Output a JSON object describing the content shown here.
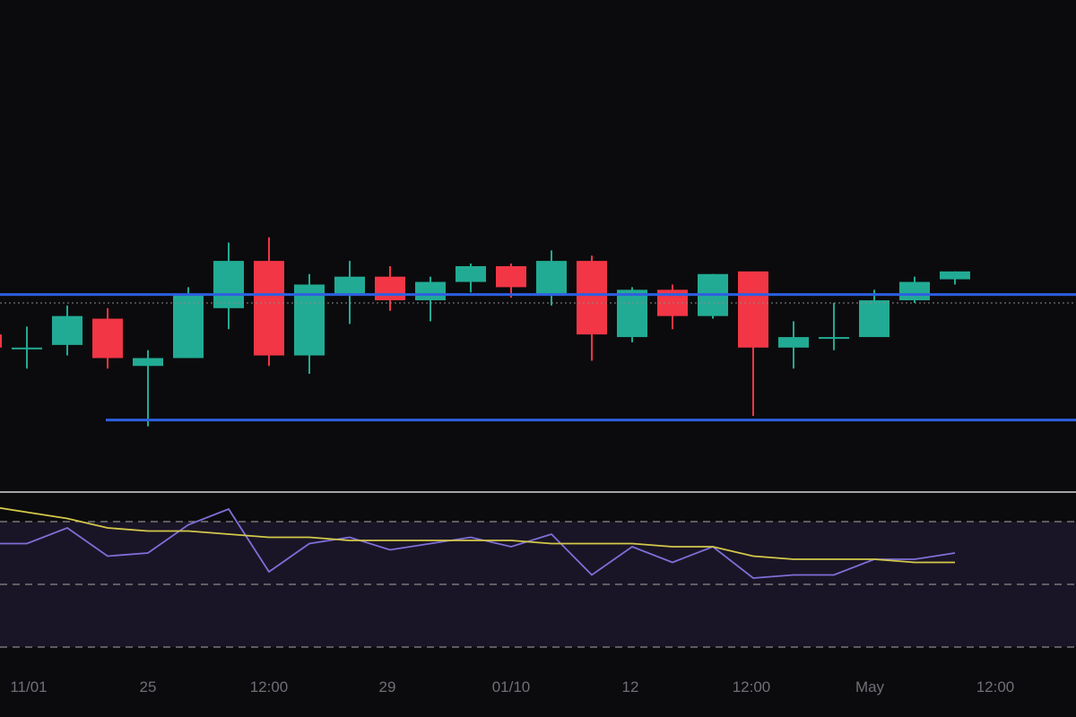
{
  "colors": {
    "background": "#0b0b0d",
    "up": "#22ab94",
    "down": "#f23645",
    "support_resistance": "#2d5fe0",
    "rsi_line": "#7e6fd8",
    "rsi_ma": "#d4c84a",
    "rsi_band": "#1a1526",
    "divider": "#d8d8d8",
    "guide": "#8a8a8a",
    "tick": "#6f6f78"
  },
  "chart_data": [
    {
      "type": "candlestick",
      "title": "",
      "xlabel": "",
      "ylabel": "",
      "ylim": [
        0,
        100
      ],
      "grid": false,
      "horizontal_lines": [
        {
          "name": "resistance",
          "value": 60.2
        },
        {
          "name": "support",
          "value": 12.4
        }
      ],
      "dotted_price_line": 57.0,
      "candles": [
        {
          "o": 45.0,
          "h": 45.0,
          "l": 38.0,
          "c": 40.0
        },
        {
          "o": 40.0,
          "h": 48.0,
          "l": 32.0,
          "c": 40.0
        },
        {
          "o": 41.0,
          "h": 56.0,
          "l": 37.0,
          "c": 52.0
        },
        {
          "o": 51.0,
          "h": 55.0,
          "l": 32.0,
          "c": 36.0
        },
        {
          "o": 33.0,
          "h": 39.0,
          "l": 10.0,
          "c": 36.0
        },
        {
          "o": 36.0,
          "h": 63.0,
          "l": 36.0,
          "c": 60.0
        },
        {
          "o": 55.0,
          "h": 80.0,
          "l": 47.0,
          "c": 73.0
        },
        {
          "o": 73.0,
          "h": 82.0,
          "l": 33.0,
          "c": 37.0
        },
        {
          "o": 37.0,
          "h": 68.0,
          "l": 30.0,
          "c": 64.0
        },
        {
          "o": 60.0,
          "h": 73.0,
          "l": 49.0,
          "c": 67.0
        },
        {
          "o": 67.0,
          "h": 71.0,
          "l": 54.0,
          "c": 58.0
        },
        {
          "o": 58.0,
          "h": 67.0,
          "l": 50.0,
          "c": 65.0
        },
        {
          "o": 65.0,
          "h": 72.0,
          "l": 61.0,
          "c": 71.0
        },
        {
          "o": 71.0,
          "h": 72.0,
          "l": 59.0,
          "c": 63.0
        },
        {
          "o": 60.0,
          "h": 77.0,
          "l": 56.0,
          "c": 73.0
        },
        {
          "o": 73.0,
          "h": 75.0,
          "l": 35.0,
          "c": 45.0
        },
        {
          "o": 44.0,
          "h": 63.0,
          "l": 42.0,
          "c": 62.0
        },
        {
          "o": 62.0,
          "h": 64.0,
          "l": 47.0,
          "c": 52.0
        },
        {
          "o": 52.0,
          "h": 68.0,
          "l": 51.0,
          "c": 68.0
        },
        {
          "o": 69.0,
          "h": 69.0,
          "l": 14.0,
          "c": 40.0
        },
        {
          "o": 40.0,
          "h": 50.0,
          "l": 32.0,
          "c": 44.0
        },
        {
          "o": 44.0,
          "h": 57.0,
          "l": 39.0,
          "c": 44.0
        },
        {
          "o": 44.0,
          "h": 62.0,
          "l": 44.0,
          "c": 58.0
        },
        {
          "o": 58.0,
          "h": 67.0,
          "l": 57.0,
          "c": 65.0
        },
        {
          "o": 66.0,
          "h": 69.0,
          "l": 64.0,
          "c": 69.0
        }
      ]
    },
    {
      "type": "line",
      "name": "RSI panel",
      "ylim": [
        0,
        100
      ],
      "levels": [
        70,
        50,
        30
      ],
      "x": [
        0,
        1,
        2,
        3,
        4,
        5,
        6,
        7,
        8,
        9,
        10,
        11,
        12,
        13,
        14,
        15,
        16,
        17,
        18,
        19,
        20,
        21,
        22,
        23,
        24
      ],
      "series": [
        {
          "values": [
            63,
            63,
            68,
            59,
            60,
            69,
            74,
            54,
            63,
            65,
            61,
            63,
            65,
            62,
            66,
            53,
            62,
            57,
            62,
            52,
            53,
            53,
            58,
            58,
            60
          ]
        },
        {
          "values": [
            75,
            73,
            71,
            68,
            67,
            67,
            66,
            65,
            65,
            64,
            64,
            64,
            64,
            64,
            63,
            63,
            63,
            62,
            62,
            59,
            58,
            58,
            58,
            57,
            57
          ]
        }
      ],
      "x_tick_labels": [
        "11/01",
        "25",
        "12:00",
        "29",
        "01/10",
        "12",
        "12:00",
        "May",
        "12:00"
      ]
    }
  ]
}
